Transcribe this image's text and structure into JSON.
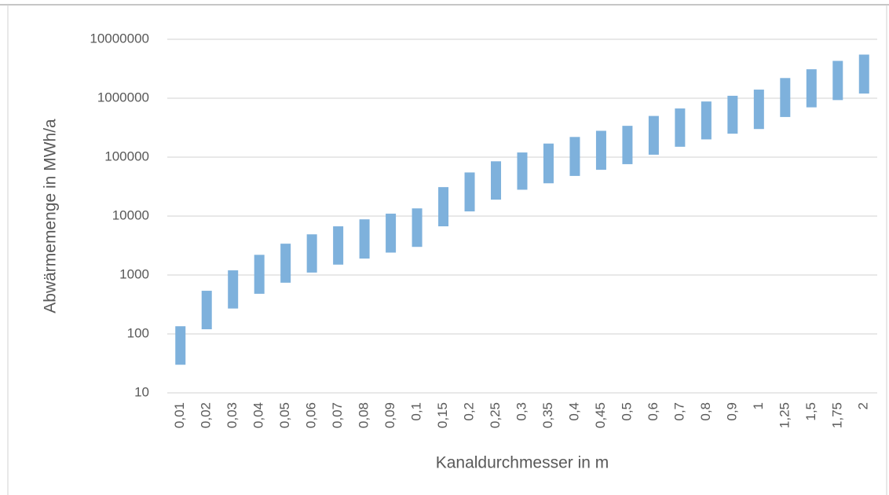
{
  "chart_data": {
    "type": "floating-bar",
    "ylabel": "Abwärmemenge in MWh/a",
    "xlabel": "Kanaldurchmesser in m",
    "categories": [
      "0,01",
      "0,02",
      "0,03",
      "0,04",
      "0,05",
      "0,06",
      "0,07",
      "0,08",
      "0,09",
      "0,1",
      "0,15",
      "0,2",
      "0,25",
      "0,3",
      "0,35",
      "0,4",
      "0,45",
      "0,5",
      "0,6",
      "0,7",
      "0,8",
      "0,9",
      "1",
      "1,25",
      "1,5",
      "1,75",
      "2"
    ],
    "ranges": [
      [
        30,
        135
      ],
      [
        120,
        540
      ],
      [
        270,
        1200
      ],
      [
        480,
        2200
      ],
      [
        740,
        3400
      ],
      [
        1100,
        4900
      ],
      [
        1500,
        6700
      ],
      [
        1900,
        8800
      ],
      [
        2400,
        11000
      ],
      [
        3000,
        13500
      ],
      [
        6700,
        31000
      ],
      [
        12000,
        55000
      ],
      [
        19000,
        85000
      ],
      [
        28000,
        120000
      ],
      [
        36000,
        170000
      ],
      [
        48000,
        220000
      ],
      [
        61000,
        280000
      ],
      [
        76000,
        340000
      ],
      [
        110000,
        500000
      ],
      [
        150000,
        670000
      ],
      [
        200000,
        880000
      ],
      [
        250000,
        1100000
      ],
      [
        300000,
        1400000
      ],
      [
        480000,
        2200000
      ],
      [
        700000,
        3100000
      ],
      [
        930000,
        4300000
      ],
      [
        1200000,
        5500000
      ]
    ],
    "color": "#7eb1dc",
    "log_y": true,
    "ylim": [
      10,
      10000000
    ],
    "yticks": [
      10,
      100,
      1000,
      10000,
      100000,
      1000000,
      10000000
    ],
    "grid": true
  }
}
